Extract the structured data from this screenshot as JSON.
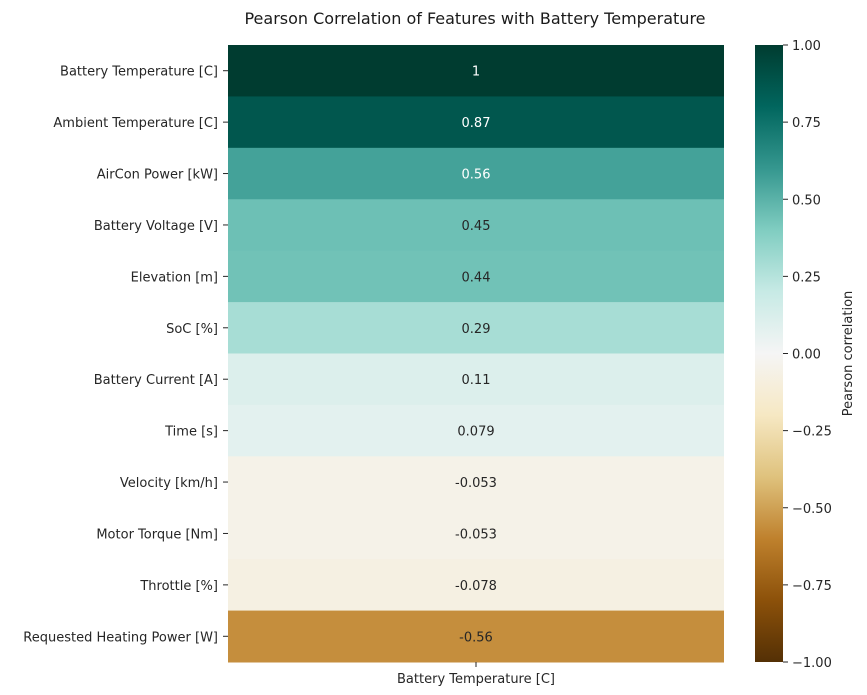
{
  "chart_data": {
    "type": "heatmap",
    "title": "Pearson Correlation of Features with Battery Temperature",
    "columns": [
      "Battery Temperature [C]"
    ],
    "rows": [
      "Battery Temperature [C]",
      "Ambient Temperature [C]",
      "AirCon Power [kW]",
      "Battery Voltage [V]",
      "Elevation [m]",
      "SoC [%]",
      "Battery Current [A]",
      "Time [s]",
      "Velocity [km/h]",
      "Motor Torque [Nm]",
      "Throttle [%]",
      "Requested Heating Power [W]"
    ],
    "values": [
      1,
      0.87,
      0.56,
      0.45,
      0.44,
      0.29,
      0.11,
      0.079,
      -0.053,
      -0.053,
      -0.078,
      -0.56
    ],
    "annotations": [
      "1",
      "0.87",
      "0.56",
      "0.45",
      "0.44",
      "0.29",
      "0.11",
      "0.079",
      "-0.053",
      "-0.053",
      "-0.078",
      "-0.56"
    ],
    "colorbar": {
      "label": "Pearson correlation",
      "range": [
        -1,
        1
      ],
      "ticks": [
        1,
        0.75,
        0.5,
        0.25,
        0,
        -0.25,
        -0.5,
        -0.75,
        -1
      ],
      "tick_labels": [
        "1.00",
        "0.75",
        "0.50",
        "0.25",
        "0.00",
        "−0.25",
        "−0.50",
        "−0.75",
        "−1.00"
      ],
      "colormap": "BrBG"
    }
  }
}
